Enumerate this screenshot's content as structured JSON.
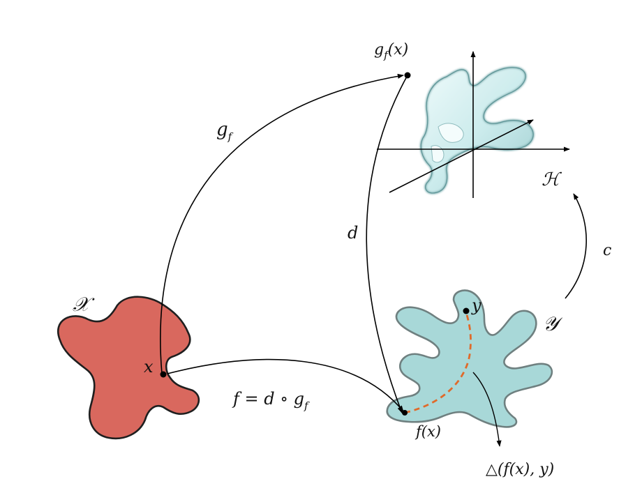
{
  "labels": {
    "space_x": "𝒳",
    "space_y": "𝒴",
    "space_h": "ℋ",
    "map_g": "g",
    "map_g_sub": "f",
    "map_d": "d",
    "map_c": "c",
    "point_x": "x",
    "point_y": "y",
    "point_gx_main": "g",
    "point_gx_sub": "f",
    "point_gx_arg": "(x)",
    "point_fx": "f(x)",
    "composition_main": "f = d ∘ g",
    "composition_sub": "f",
    "loss": "△(f(x), y)"
  },
  "colors": {
    "blob_x_fill": "#d9685e",
    "blob_y_fill": "#a8d8d8",
    "blob_h_fill": "#d4eff0",
    "outline": "#2a2a2a",
    "arrow": "#000000",
    "dashed_path": "#e06a2a"
  }
}
